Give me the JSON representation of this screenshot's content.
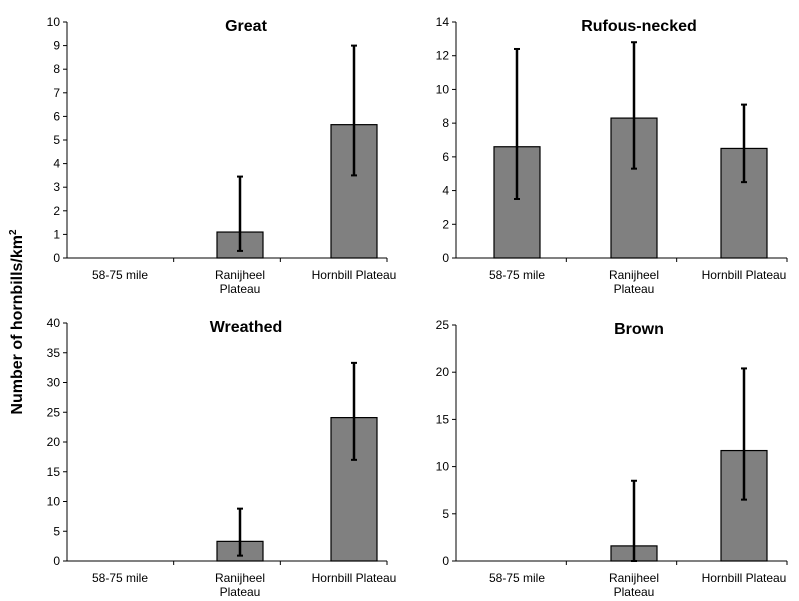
{
  "y_axis_label": {
    "main": "Number of hornbills/km",
    "superscript": "2"
  },
  "bar_color": "#808080",
  "chart_data": [
    {
      "type": "bar",
      "title": "Great",
      "categories": [
        "58-75 mile",
        "Ranijheel Plateau",
        "Hornbill Plateau"
      ],
      "values": [
        0,
        1.1,
        5.65
      ],
      "error_low": [
        null,
        0.3,
        3.5
      ],
      "error_high": [
        null,
        3.45,
        9.0
      ],
      "ylim": [
        0,
        10
      ],
      "yticks": [
        0,
        1,
        2,
        3,
        4,
        5,
        6,
        7,
        8,
        9,
        10
      ],
      "grid": false
    },
    {
      "type": "bar",
      "title": "Rufous-necked",
      "categories": [
        "58-75 mile",
        "Ranijheel Plateau",
        "Hornbill Plateau"
      ],
      "values": [
        6.6,
        8.3,
        6.5
      ],
      "error_low": [
        3.5,
        5.3,
        4.5
      ],
      "error_high": [
        12.4,
        12.8,
        9.1
      ],
      "ylim": [
        0,
        14
      ],
      "yticks": [
        0,
        2,
        4,
        6,
        8,
        10,
        12,
        14
      ],
      "grid": false
    },
    {
      "type": "bar",
      "title": "Wreathed",
      "categories": [
        "58-75 mile",
        "Ranijheel Plateau",
        "Hornbill Plateau"
      ],
      "values": [
        0,
        3.3,
        24.1
      ],
      "error_low": [
        null,
        0.9,
        17.0
      ],
      "error_high": [
        null,
        8.8,
        33.3
      ],
      "ylim": [
        0,
        40
      ],
      "yticks": [
        0,
        5,
        10,
        15,
        20,
        25,
        30,
        35,
        40
      ],
      "grid": false
    },
    {
      "type": "bar",
      "title": "Brown",
      "categories": [
        "58-75 mile",
        "Ranijheel Plateau",
        "Hornbill Plateau"
      ],
      "values": [
        0,
        1.6,
        11.7
      ],
      "error_low": [
        null,
        0,
        6.5
      ],
      "error_high": [
        null,
        8.5,
        20.4
      ],
      "ylim": [
        0,
        25
      ],
      "yticks": [
        0,
        5,
        10,
        15,
        20,
        25
      ],
      "grid": false
    }
  ]
}
